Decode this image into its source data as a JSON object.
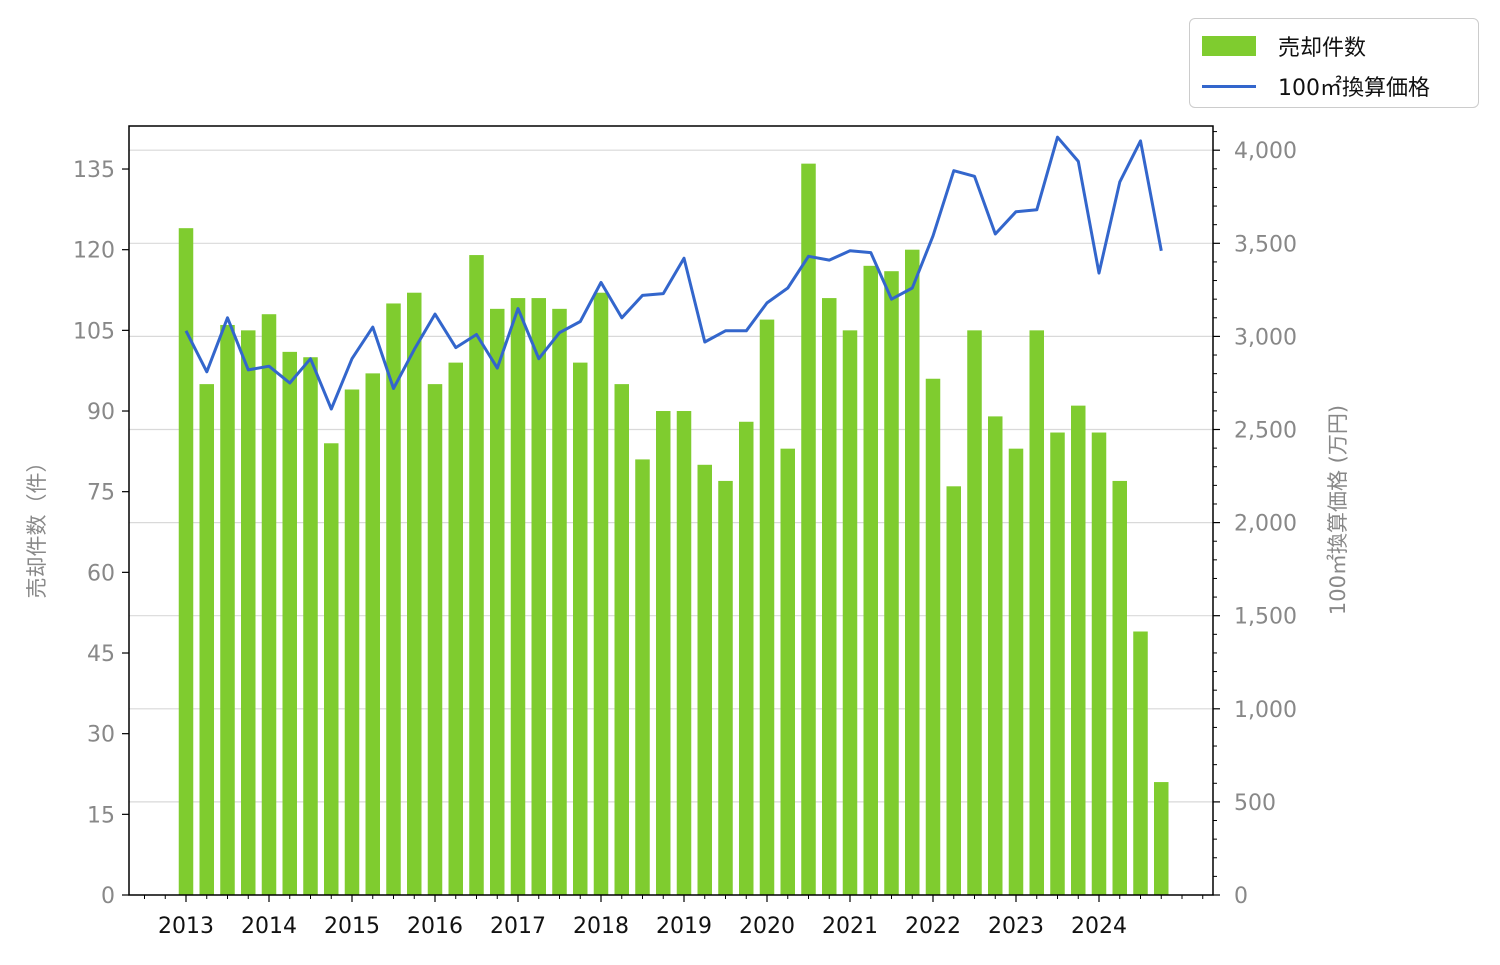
{
  "colors": {
    "bar": "#7fcc2f",
    "line": "#3366cc",
    "grid": "#d9d9d9",
    "tick_text": "#888888",
    "x_tick_text": "#111111"
  },
  "legend": {
    "bar_label": "売却件数",
    "line_label": "100㎡換算価格"
  },
  "axes": {
    "left_label": "売却件数（件）",
    "right_label": "100㎡換算価格 (万円)"
  },
  "chart_data": {
    "type": "bar",
    "x_ticks": [
      "2013",
      "2014",
      "2015",
      "2016",
      "2017",
      "2018",
      "2019",
      "2020",
      "2021",
      "2022",
      "2023",
      "2024"
    ],
    "left_ticks": [
      "0",
      "15",
      "30",
      "45",
      "60",
      "75",
      "90",
      "105",
      "120",
      "135"
    ],
    "right_ticks": [
      "0",
      "500",
      "1,000",
      "1,500",
      "2,000",
      "2,500",
      "3,000",
      "3,500",
      "4,000"
    ],
    "left_ylim": [
      0,
      143
    ],
    "right_ylim": [
      0,
      4130
    ],
    "grid": "horizontal, right axis",
    "legend_position": "top-right outside",
    "series": [
      {
        "name": "売却件数",
        "type": "bar",
        "axis": "left",
        "values": [
          124,
          95,
          106,
          105,
          108,
          101,
          100,
          84,
          94,
          97,
          110,
          112,
          95,
          99,
          119,
          109,
          111,
          111,
          109,
          99,
          112,
          95,
          81,
          90,
          90,
          80,
          77,
          88,
          107,
          83,
          136,
          111,
          105,
          117,
          116,
          120,
          96,
          76,
          105,
          89,
          83,
          105,
          86,
          91,
          86,
          77,
          49,
          21
        ]
      },
      {
        "name": "100㎡換算価格",
        "type": "line",
        "axis": "right",
        "values": [
          3030,
          2810,
          3100,
          2820,
          2840,
          2750,
          2880,
          2610,
          2880,
          3050,
          2720,
          2930,
          3120,
          2940,
          3010,
          2830,
          3150,
          2880,
          3020,
          3080,
          3290,
          3100,
          3220,
          3230,
          3420,
          2970,
          3030,
          3030,
          3180,
          3260,
          3430,
          3410,
          3460,
          3450,
          3200,
          3260,
          3540,
          3890,
          3860,
          3550,
          3670,
          3680,
          4070,
          3940,
          3340,
          3830,
          4050,
          3460
        ]
      }
    ]
  }
}
